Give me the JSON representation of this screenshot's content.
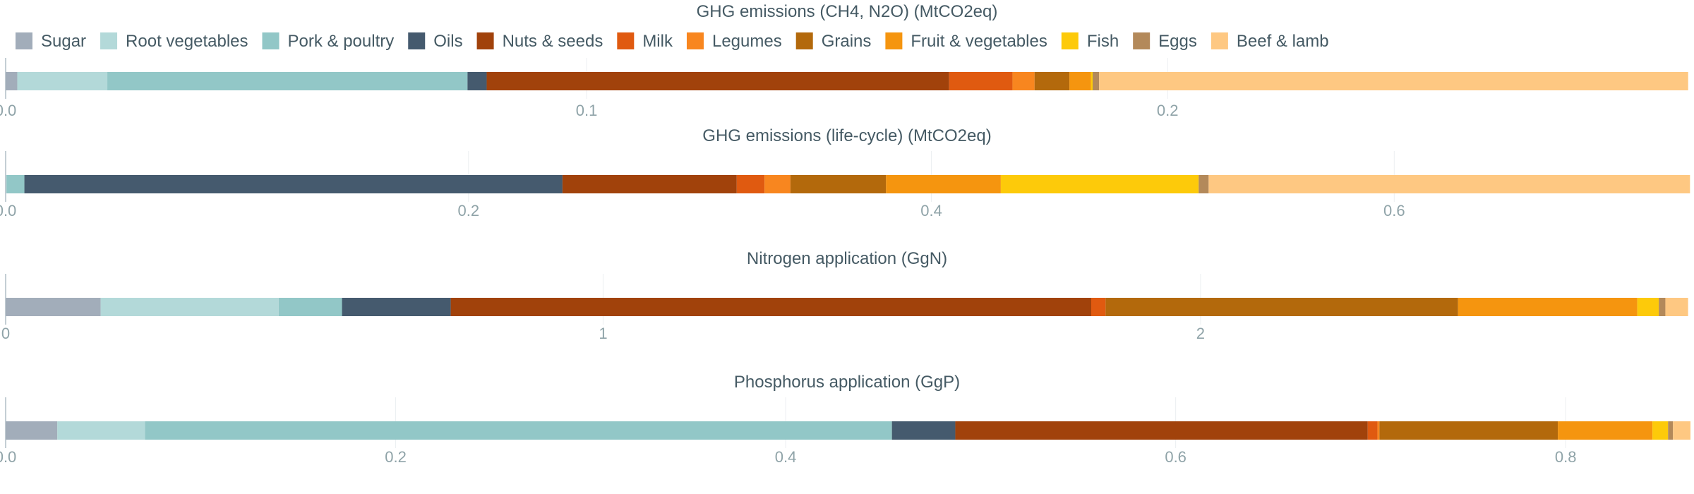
{
  "chart_data": {
    "type": "bar",
    "orientation": "horizontal",
    "stacked": true,
    "legend": {
      "position": "top-left",
      "items": [
        {
          "name": "Sugar",
          "color": "#a2adba"
        },
        {
          "name": "Root vegetables",
          "color": "#b3d9d9"
        },
        {
          "name": "Pork & poultry",
          "color": "#92c7c7"
        },
        {
          "name": "Oils",
          "color": "#455a6e"
        },
        {
          "name": "Nuts & seeds",
          "color": "#a1420b"
        },
        {
          "name": "Milk",
          "color": "#e05a10"
        },
        {
          "name": "Legumes",
          "color": "#f8861f"
        },
        {
          "name": "Grains",
          "color": "#b3690c"
        },
        {
          "name": "Fruit & vegetables",
          "color": "#f5950f"
        },
        {
          "name": "Fish",
          "color": "#fdca0a"
        },
        {
          "name": "Eggs",
          "color": "#b3895a"
        },
        {
          "name": "Beef & lamb",
          "color": "#fec882"
        }
      ]
    },
    "panels": [
      {
        "title": "GHG emissions (CH4, N2O) (MtCO2eq)",
        "xlim": [
          0,
          0.29
        ],
        "ticks": [
          0,
          0.1,
          0.2
        ],
        "tick_labels": [
          "0.0",
          "0.1",
          "0.2"
        ],
        "grid": true,
        "values": {
          "Sugar": 0.002,
          "Root vegetables": 0.0155,
          "Pork & poultry": 0.062,
          "Oils": 0.0033,
          "Nuts & seeds": 0.0796,
          "Milk": 0.0109,
          "Legumes": 0.0038,
          "Grains": 0.006,
          "Fruit & vegetables": 0.0037,
          "Fish": 0.0003,
          "Eggs": 0.0011,
          "Beef & lamb": 0.1014
        }
      },
      {
        "title": "GHG emissions (life-cycle) (MtCO2eq)",
        "xlim": [
          0,
          0.728
        ],
        "ticks": [
          0,
          0.2,
          0.4,
          0.6
        ],
        "tick_labels": [
          "0.0",
          "0.2",
          "0.4",
          "0.6"
        ],
        "grid": true,
        "values": {
          "Sugar": 0.0002,
          "Root vegetables": 0.0002,
          "Pork & poultry": 0.0077,
          "Oils": 0.2325,
          "Nuts & seeds": 0.0753,
          "Milk": 0.012,
          "Legumes": 0.0112,
          "Grains": 0.0413,
          "Fruit & vegetables": 0.0496,
          "Fish": 0.0855,
          "Eggs": 0.0043,
          "Beef & lamb": 0.208
        }
      },
      {
        "title": "Nitrogen application (GgN)",
        "xlim": [
          0,
          2.82
        ],
        "ticks": [
          0,
          1,
          2
        ],
        "tick_labels": [
          "0",
          "1",
          "2"
        ],
        "grid": true,
        "values": {
          "Sugar": 0.159,
          "Root vegetables": 0.298,
          "Pork & poultry": 0.106,
          "Oils": 0.182,
          "Nuts & seeds": 1.072,
          "Milk": 0.024,
          "Legumes": 0.0,
          "Grains": 0.59,
          "Fruit & vegetables": 0.3,
          "Fish": 0.036,
          "Eggs": 0.011,
          "Beef & lamb": 0.038
        }
      },
      {
        "title": "Phosphorus application (GgP)",
        "xlim": [
          0,
          0.864
        ],
        "ticks": [
          0,
          0.2,
          0.4,
          0.6,
          0.8
        ],
        "tick_labels": [
          "0.0",
          "0.2",
          "0.4",
          "0.6",
          "0.8"
        ],
        "grid": true,
        "values": {
          "Sugar": 0.0265,
          "Root vegetables": 0.045,
          "Pork & poultry": 0.383,
          "Oils": 0.0325,
          "Nuts & seeds": 0.2115,
          "Milk": 0.005,
          "Legumes": 0.001,
          "Grains": 0.0915,
          "Fruit & vegetables": 0.0485,
          "Fish": 0.008,
          "Eggs": 0.0025,
          "Beef & lamb": 0.009
        }
      }
    ]
  }
}
